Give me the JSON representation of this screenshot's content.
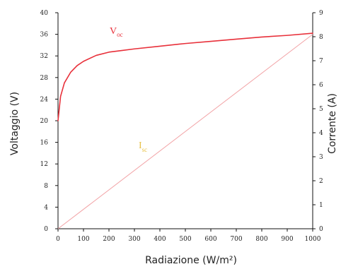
{
  "chart_data": {
    "type": "line",
    "xlabel": "Radiazione (W/m²)",
    "ylabel_left": "Voltaggio (V)",
    "ylabel_right": "Corrente (A)",
    "xlim": [
      0,
      1000
    ],
    "ylim_left": [
      0,
      40
    ],
    "ylim_right": [
      0,
      9
    ],
    "x_ticks": [
      "0",
      "100",
      "200",
      "300",
      "400",
      "500",
      "600",
      "700",
      "800",
      "900",
      "1000"
    ],
    "y_left_ticks": [
      "0",
      "4",
      "8",
      "12",
      "16",
      "20",
      "24",
      "28",
      "32",
      "36",
      "40"
    ],
    "y_right_ticks": [
      "0",
      "1",
      "2",
      "3",
      "4",
      "5",
      "6",
      "7",
      "8",
      "9"
    ],
    "grid": false,
    "colors": {
      "voc": "#e8303a",
      "isc": "#f2a3a6",
      "isc_label": "#e8c24a",
      "axis": "#111111"
    },
    "series": [
      {
        "name": "Voc",
        "label_main": "V",
        "label_sub": "oc",
        "axis": "left",
        "x": [
          0,
          10,
          25,
          50,
          75,
          100,
          150,
          200,
          250,
          300,
          400,
          500,
          600,
          700,
          800,
          900,
          1000
        ],
        "values": [
          20,
          24.5,
          27.0,
          29.0,
          30.2,
          31.0,
          32.1,
          32.7,
          33.0,
          33.3,
          33.8,
          34.3,
          34.7,
          35.1,
          35.5,
          35.8,
          36.2
        ]
      },
      {
        "name": "Isc",
        "label_main": "I",
        "label_sub": "sc",
        "axis": "right",
        "x": [
          0,
          1000
        ],
        "values": [
          0,
          8.1
        ]
      }
    ]
  }
}
